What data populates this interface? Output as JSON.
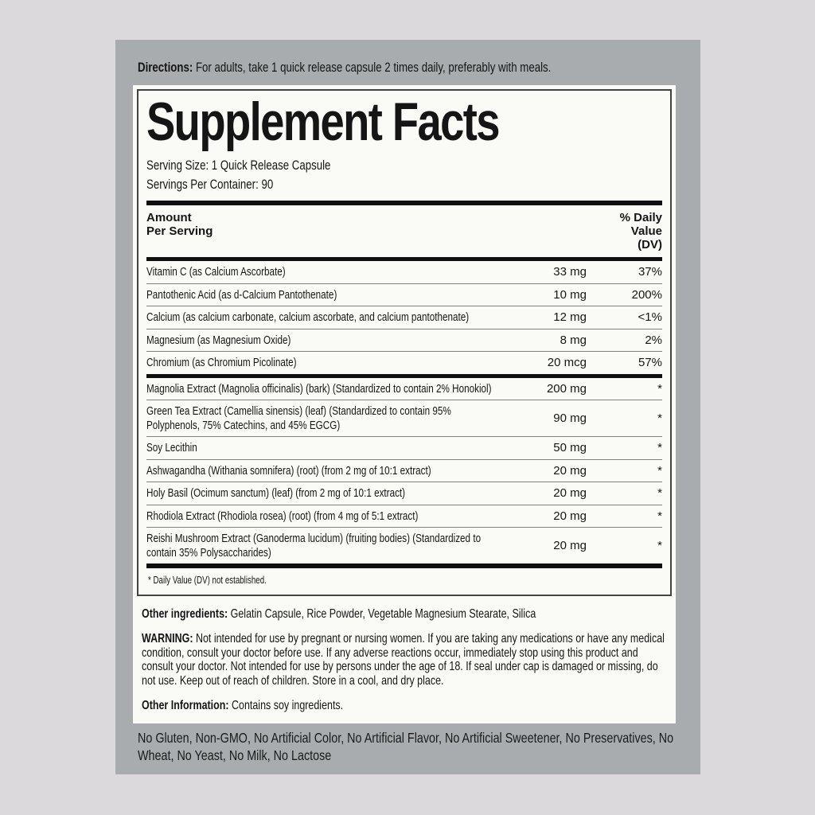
{
  "colors": {
    "page_background": "#dbd9dc",
    "panel_background": "#a8acae",
    "card_background": "#fafaf6",
    "rule_black": "#0f0f0f",
    "row_separator": "#808080",
    "text": "#151515"
  },
  "directions": {
    "label": "Directions:",
    "text": " For adults, take 1 quick release capsule 2 times daily, preferably with meals."
  },
  "facts": {
    "title": "Supplement Facts",
    "serving_size": "Serving Size: 1 Quick Release Capsule",
    "servings_per_container": "Servings Per Container: 90",
    "col_amount_line1": "Amount",
    "col_amount_line2": "Per Serving",
    "col_dv_line1": "% Daily",
    "col_dv_line2": "Value",
    "col_dv_line3": "(DV)",
    "rows": [
      {
        "name": "Vitamin C (as Calcium Ascorbate)",
        "amount": "33 mg",
        "dv": "37%"
      },
      {
        "name": "Pantothenic Acid (as d-Calcium Pantothenate)",
        "amount": "10 mg",
        "dv": "200%"
      },
      {
        "name": "Calcium (as calcium carbonate, calcium ascorbate, and calcium pantothenate)",
        "amount": "12 mg",
        "dv": "<1%"
      },
      {
        "name": "Magnesium (as Magnesium Oxide)",
        "amount": "8 mg",
        "dv": "2%"
      },
      {
        "name": "Chromium (as Chromium Picolinate)",
        "amount": "20 mcg",
        "dv": "57%"
      },
      {
        "name": "Magnolia Extract (Magnolia officinalis) (bark) (Standardized to contain 2% Honokiol)",
        "amount": "200 mg",
        "dv": "*"
      },
      {
        "name": "Green Tea Extract (Camellia sinensis) (leaf) (Standardized to contain 95% Polyphenols, 75% Catechins, and 45% EGCG)",
        "amount": "90 mg",
        "dv": "*"
      },
      {
        "name": "Soy Lecithin",
        "amount": "50 mg",
        "dv": "*"
      },
      {
        "name": "Ashwagandha (Withania somnifera) (root) (from 2 mg of 10:1 extract)",
        "amount": "20 mg",
        "dv": "*"
      },
      {
        "name": "Holy Basil (Ocimum sanctum) (leaf) (from 2 mg of 10:1 extract)",
        "amount": "20 mg",
        "dv": "*"
      },
      {
        "name": "Rhodiola Extract (Rhodiola rosea) (root) (from 4 mg of 5:1 extract)",
        "amount": "20 mg",
        "dv": "*"
      },
      {
        "name": "Reishi Mushroom Extract (Ganoderma lucidum) (fruiting bodies) (Standardized to contain 35% Polysaccharides)",
        "amount": "20 mg",
        "dv": "*"
      }
    ],
    "footnote": "* Daily Value (DV) not established."
  },
  "other_ingredients": {
    "label": "Other ingredients:",
    "text": " Gelatin Capsule, Rice Powder, Vegetable Magnesium Stearate, Silica"
  },
  "warning": {
    "label": "WARNING:",
    "text": " Not intended for use by pregnant or nursing women. If you are taking any medications or have any medical condition, consult your doctor before use. If any adverse reactions occur, immediately stop using this product and consult your doctor. Not intended for use by persons under the age of 18. If seal under cap is damaged or missing, do not use. Keep out of reach of children. Store in a cool, and dry place."
  },
  "other_information": {
    "label": "Other Information:",
    "text": " Contains soy ingredients."
  },
  "claims": "No Gluten, Non-GMO, No Artificial Color, No Artificial Flavor, No Artificial Sweetener, No Preservatives, No Wheat, No Yeast, No Milk, No Lactose"
}
